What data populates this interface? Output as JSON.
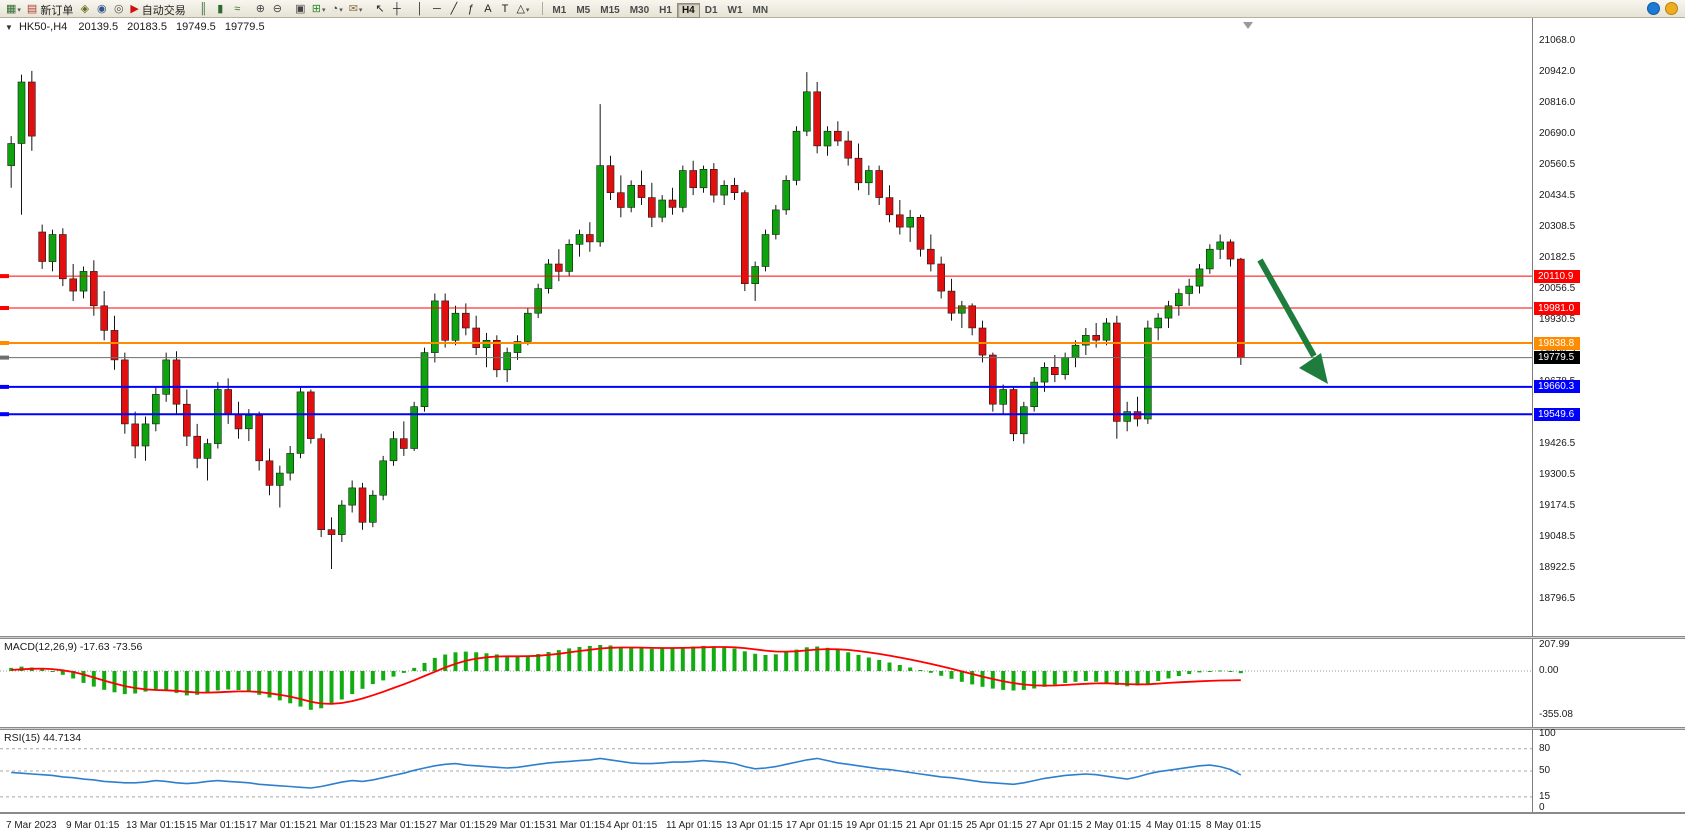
{
  "colors": {
    "candle_up": "#0EA30E",
    "candle_down": "#E01010",
    "wick": "#141414",
    "macd_histogram": "#12AC12",
    "macd_signal": "#FF0000",
    "rsi_line": "#2E7FD0",
    "arrow": "#1E7D3C",
    "level_red": "#FF0000",
    "level_blue": "#0000FF",
    "level_orange": "#FF8C00"
  },
  "toolbar": {
    "items": [
      {
        "name": "new-chart-icon",
        "glyph": "▦",
        "color": "#2d6a2d",
        "dropdown": true
      },
      {
        "name": "new-order-button",
        "glyph": "▤",
        "color": "#b03a2e",
        "label": "新订单"
      },
      {
        "name": "metaeditor-icon",
        "glyph": "◈",
        "color": "#6b6b1f"
      },
      {
        "name": "market-watch-icon",
        "glyph": "◉",
        "color": "#33548a"
      },
      {
        "name": "strategy-tester-icon",
        "glyph": "◎",
        "color": "#555555"
      },
      {
        "name": "autotrading-button",
        "glyph": "▶",
        "color": "#cc1111",
        "label": "自动交易"
      },
      {
        "sep": true
      },
      {
        "name": "bar-chart-icon",
        "glyph": "║",
        "color": "#2e6b2e"
      },
      {
        "name": "candlestick-chart-icon",
        "glyph": "▮",
        "color": "#2e6b2e"
      },
      {
        "name": "line-chart-icon",
        "glyph": "≈",
        "color": "#2e6b2e"
      },
      {
        "sep": true
      },
      {
        "name": "zoom-in-icon",
        "glyph": "⊕",
        "color": "#444444"
      },
      {
        "name": "zoom-out-icon",
        "glyph": "⊖",
        "color": "#444444"
      },
      {
        "sep": true
      },
      {
        "name": "tile-windows-icon",
        "glyph": "▣",
        "color": "#444444"
      },
      {
        "name": "indicators-icon",
        "glyph": "⊞",
        "color": "#2e8b2e",
        "dropdown": true
      },
      {
        "name": "periods-icon",
        "glyph": "◔",
        "color": "#444444",
        "dropdown": true
      },
      {
        "name": "templates-icon",
        "glyph": "✉",
        "color": "#8a6d3b",
        "dropdown": true
      },
      {
        "sep": true
      },
      {
        "name": "cursor-icon",
        "glyph": "↖",
        "color": "#222222"
      },
      {
        "name": "crosshair-icon",
        "glyph": "┼",
        "color": "#222222"
      },
      {
        "sep": true
      },
      {
        "name": "vertical-line-icon",
        "glyph": "│",
        "color": "#222222"
      },
      {
        "name": "horizontal-line-icon",
        "glyph": "─",
        "color": "#222222"
      },
      {
        "name": "trendline-icon",
        "glyph": "╱",
        "color": "#222222"
      },
      {
        "name": "fibonacci-icon",
        "glyph": "ƒ",
        "color": "#222222"
      },
      {
        "name": "text-icon",
        "glyph": "A",
        "color": "#222222"
      },
      {
        "name": "label-icon",
        "glyph": "T",
        "color": "#222222"
      },
      {
        "name": "shapes-icon",
        "glyph": "△",
        "color": "#222222",
        "dropdown": true
      },
      {
        "sep": true
      }
    ],
    "timeframes": [
      "M1",
      "M5",
      "M15",
      "M30",
      "H1",
      "H4",
      "D1",
      "W1",
      "MN"
    ],
    "active_timeframe": "H4",
    "right_icons": [
      {
        "name": "community-icon",
        "color": "#1c7ad4"
      },
      {
        "name": "search-icon",
        "color": "#f0ad1e"
      }
    ]
  },
  "chart": {
    "collapse_glyph": "▼",
    "symbol_line": "HK50-,H4",
    "ohlc": {
      "open": "20139.5",
      "high": "20183.5",
      "low": "19749.5",
      "close": "19779.5"
    },
    "price_axis_labels": [
      "21068.0",
      "20942.0",
      "20816.0",
      "20690.0",
      "20560.5",
      "20434.5",
      "20308.5",
      "20182.5",
      "20056.5",
      "19930.5",
      "19804.5",
      "19678.5",
      "19552.5",
      "19426.5",
      "19300.5",
      "19174.5",
      "19048.5",
      "18922.5",
      "18796.5"
    ],
    "hlines": [
      {
        "price": 20110.9,
        "label": "20110.9",
        "color": "#FF0000",
        "width": 1
      },
      {
        "price": 19981.0,
        "label": "19981.0",
        "color": "#FF0000",
        "width": 1
      },
      {
        "price": 19838.8,
        "label": "19838.8",
        "color": "#FF8C00",
        "width": 2
      },
      {
        "price": 19779.5,
        "label": "19779.5",
        "color": "#6E6E6E",
        "width": 1,
        "tag_color": "#000000"
      },
      {
        "price": 19660.3,
        "label": "19660.3",
        "color": "#0000FF",
        "width": 2
      },
      {
        "price": 19549.6,
        "label": "19549.6",
        "color": "#0000FF",
        "width": 2
      }
    ],
    "annotation_arrow": {
      "color": "#1E7D3C"
    },
    "time_labels": [
      "7 Mar 2023",
      "9 Mar 01:15",
      "13 Mar 01:15",
      "15 Mar 01:15",
      "17 Mar 01:15",
      "21 Mar 01:15",
      "23 Mar 01:15",
      "27 Mar 01:15",
      "29 Mar 01:15",
      "31 Mar 01:15",
      "4 Apr 01:15",
      "11 Apr 01:15",
      "13 Apr 01:15",
      "17 Apr 01:15",
      "19 Apr 01:15",
      "21 Apr 01:15",
      "25 Apr 01:15",
      "27 Apr 01:15",
      "2 May 01:15",
      "4 May 01:15",
      "8 May 01:15"
    ]
  },
  "macd": {
    "label": "MACD(12,26,9)",
    "values_text": "-17.63 -73.56",
    "axis_labels": [
      "207.99",
      "0.00",
      "-355.08"
    ]
  },
  "rsi": {
    "label": "RSI(15)",
    "value_text": "44.7134",
    "axis_labels": [
      "100",
      "80",
      "50",
      "15",
      "0"
    ],
    "levels": [
      80,
      50,
      15
    ]
  },
  "chart_data": {
    "type": "candlestick",
    "symbol": "HK50-",
    "period": "H4",
    "price_range": [
      18796.5,
      21068.0
    ],
    "candles": [
      [
        20560,
        20680,
        20470,
        20650
      ],
      [
        20650,
        20930,
        20360,
        20900
      ],
      [
        20900,
        20945,
        20620,
        20680
      ],
      [
        20290,
        20320,
        20140,
        20170
      ],
      [
        20170,
        20300,
        20130,
        20280
      ],
      [
        20280,
        20305,
        20070,
        20100
      ],
      [
        20100,
        20160,
        20010,
        20050
      ],
      [
        20050,
        20150,
        20020,
        20130
      ],
      [
        20130,
        20175,
        19950,
        19990
      ],
      [
        19990,
        20050,
        19850,
        19890
      ],
      [
        19890,
        19950,
        19730,
        19770
      ],
      [
        19770,
        19800,
        19470,
        19510
      ],
      [
        19510,
        19560,
        19370,
        19420
      ],
      [
        19420,
        19540,
        19360,
        19510
      ],
      [
        19510,
        19660,
        19480,
        19630
      ],
      [
        19630,
        19800,
        19600,
        19770
      ],
      [
        19770,
        19805,
        19550,
        19590
      ],
      [
        19590,
        19650,
        19420,
        19460
      ],
      [
        19460,
        19510,
        19330,
        19370
      ],
      [
        19370,
        19450,
        19280,
        19430
      ],
      [
        19430,
        19680,
        19410,
        19650
      ],
      [
        19650,
        19695,
        19510,
        19550
      ],
      [
        19550,
        19600,
        19450,
        19490
      ],
      [
        19490,
        19570,
        19440,
        19545
      ],
      [
        19545,
        19560,
        19320,
        19360
      ],
      [
        19360,
        19410,
        19220,
        19260
      ],
      [
        19260,
        19340,
        19170,
        19310
      ],
      [
        19310,
        19420,
        19280,
        19390
      ],
      [
        19390,
        19660,
        19370,
        19640
      ],
      [
        19640,
        19650,
        19430,
        19450
      ],
      [
        19450,
        19470,
        19050,
        19080
      ],
      [
        19080,
        19130,
        18920,
        19060
      ],
      [
        19060,
        19200,
        19030,
        19180
      ],
      [
        19180,
        19280,
        19150,
        19250
      ],
      [
        19250,
        19270,
        19080,
        19110
      ],
      [
        19110,
        19240,
        19090,
        19220
      ],
      [
        19220,
        19380,
        19200,
        19360
      ],
      [
        19360,
        19480,
        19340,
        19450
      ],
      [
        19450,
        19520,
        19380,
        19410
      ],
      [
        19410,
        19600,
        19400,
        19580
      ],
      [
        19580,
        19820,
        19560,
        19800
      ],
      [
        19800,
        20040,
        19760,
        20010
      ],
      [
        20010,
        20040,
        19820,
        19850
      ],
      [
        19850,
        19990,
        19830,
        19960
      ],
      [
        19960,
        20000,
        19870,
        19900
      ],
      [
        19900,
        19950,
        19790,
        19820
      ],
      [
        19820,
        19880,
        19740,
        19850
      ],
      [
        19850,
        19870,
        19700,
        19730
      ],
      [
        19730,
        19820,
        19680,
        19800
      ],
      [
        19800,
        19870,
        19770,
        19845
      ],
      [
        19845,
        19980,
        19830,
        19960
      ],
      [
        19960,
        20080,
        19940,
        20060
      ],
      [
        20060,
        20180,
        20040,
        20160
      ],
      [
        20160,
        20220,
        20090,
        20130
      ],
      [
        20130,
        20260,
        20110,
        20240
      ],
      [
        20240,
        20300,
        20190,
        20280
      ],
      [
        20280,
        20330,
        20210,
        20250
      ],
      [
        20250,
        20810,
        20230,
        20560
      ],
      [
        20560,
        20600,
        20420,
        20450
      ],
      [
        20450,
        20520,
        20350,
        20390
      ],
      [
        20390,
        20500,
        20370,
        20480
      ],
      [
        20480,
        20540,
        20400,
        20430
      ],
      [
        20430,
        20490,
        20310,
        20350
      ],
      [
        20350,
        20440,
        20330,
        20420
      ],
      [
        20420,
        20470,
        20360,
        20390
      ],
      [
        20390,
        20560,
        20370,
        20540
      ],
      [
        20540,
        20580,
        20440,
        20470
      ],
      [
        20470,
        20560,
        20450,
        20545
      ],
      [
        20545,
        20570,
        20410,
        20440
      ],
      [
        20440,
        20500,
        20400,
        20480
      ],
      [
        20480,
        20510,
        20420,
        20450
      ],
      [
        20450,
        20460,
        20050,
        20080
      ],
      [
        20080,
        20170,
        20010,
        20150
      ],
      [
        20150,
        20300,
        20130,
        20280
      ],
      [
        20280,
        20400,
        20260,
        20380
      ],
      [
        20380,
        20520,
        20360,
        20500
      ],
      [
        20500,
        20720,
        20480,
        20700
      ],
      [
        20700,
        20940,
        20680,
        20860
      ],
      [
        20860,
        20900,
        20610,
        20640
      ],
      [
        20640,
        20720,
        20600,
        20700
      ],
      [
        20700,
        20740,
        20640,
        20660
      ],
      [
        20660,
        20700,
        20560,
        20590
      ],
      [
        20590,
        20650,
        20460,
        20490
      ],
      [
        20490,
        20560,
        20440,
        20540
      ],
      [
        20540,
        20560,
        20400,
        20430
      ],
      [
        20430,
        20480,
        20330,
        20360
      ],
      [
        20360,
        20420,
        20280,
        20310
      ],
      [
        20310,
        20380,
        20250,
        20350
      ],
      [
        20350,
        20360,
        20190,
        20220
      ],
      [
        20220,
        20280,
        20130,
        20160
      ],
      [
        20160,
        20190,
        20020,
        20050
      ],
      [
        20050,
        20100,
        19930,
        19960
      ],
      [
        19960,
        20010,
        19900,
        19990
      ],
      [
        19990,
        20000,
        19870,
        19900
      ],
      [
        19900,
        19930,
        19760,
        19790
      ],
      [
        19790,
        19800,
        19560,
        19590
      ],
      [
        19590,
        19670,
        19550,
        19650
      ],
      [
        19650,
        19660,
        19440,
        19470
      ],
      [
        19470,
        19600,
        19430,
        19580
      ],
      [
        19580,
        19700,
        19560,
        19680
      ],
      [
        19680,
        19760,
        19640,
        19740
      ],
      [
        19740,
        19790,
        19680,
        19710
      ],
      [
        19710,
        19800,
        19690,
        19780
      ],
      [
        19780,
        19850,
        19740,
        19830
      ],
      [
        19830,
        19900,
        19790,
        19870
      ],
      [
        19870,
        19920,
        19820,
        19850
      ],
      [
        19850,
        19940,
        19830,
        19920
      ],
      [
        19920,
        19950,
        19450,
        19520
      ],
      [
        19520,
        19600,
        19480,
        19560
      ],
      [
        19560,
        19620,
        19500,
        19530
      ],
      [
        19530,
        19930,
        19510,
        19900
      ],
      [
        19900,
        19960,
        19850,
        19940
      ],
      [
        19940,
        20010,
        19900,
        19990
      ],
      [
        19990,
        20060,
        19950,
        20040
      ],
      [
        20040,
        20100,
        19990,
        20070
      ],
      [
        20070,
        20160,
        20040,
        20140
      ],
      [
        20140,
        20240,
        20120,
        20220
      ],
      [
        20220,
        20280,
        20180,
        20250
      ],
      [
        20250,
        20260,
        20150,
        20180
      ],
      [
        20180,
        20185,
        19750,
        19779.5
      ]
    ],
    "macd_histogram": [
      25,
      35,
      28,
      15,
      -5,
      -30,
      -60,
      -95,
      -125,
      -150,
      -170,
      -185,
      -180,
      -165,
      -150,
      -158,
      -175,
      -195,
      -190,
      -168,
      -155,
      -148,
      -152,
      -168,
      -190,
      -212,
      -235,
      -258,
      -285,
      -310,
      -298,
      -268,
      -228,
      -185,
      -142,
      -105,
      -75,
      -45,
      -15,
      25,
      65,
      105,
      132,
      150,
      155,
      150,
      142,
      133,
      124,
      118,
      122,
      136,
      152,
      167,
      181,
      192,
      201,
      208,
      204,
      194,
      185,
      180,
      178,
      181,
      186,
      191,
      196,
      201,
      198,
      190,
      179,
      158,
      138,
      128,
      134,
      150,
      171,
      190,
      196,
      186,
      170,
      150,
      129,
      108,
      88,
      68,
      48,
      28,
      8,
      -14,
      -38,
      -62,
      -86,
      -107,
      -126,
      -141,
      -151,
      -156,
      -151,
      -140,
      -126,
      -110,
      -96,
      -86,
      -81,
      -86,
      -96,
      -112,
      -122,
      -116,
      -100,
      -80,
      -59,
      -40,
      -24,
      -11,
      -2,
      4,
      -6,
      -17.63
    ],
    "macd_signal": [
      8,
      14,
      18,
      19,
      15,
      6,
      -8,
      -28,
      -52,
      -77,
      -100,
      -121,
      -136,
      -147,
      -152,
      -154,
      -158,
      -166,
      -172,
      -173,
      -170,
      -166,
      -163,
      -163,
      -168,
      -178,
      -190,
      -205,
      -224,
      -246,
      -260,
      -263,
      -256,
      -241,
      -220,
      -194,
      -166,
      -136,
      -106,
      -74,
      -40,
      -6,
      28,
      58,
      82,
      99,
      110,
      116,
      118,
      118,
      119,
      122,
      129,
      138,
      149,
      160,
      170,
      180,
      186,
      188,
      188,
      187,
      185,
      184,
      184,
      185,
      187,
      190,
      192,
      192,
      190,
      183,
      173,
      163,
      156,
      155,
      158,
      165,
      172,
      175,
      174,
      169,
      160,
      149,
      137,
      123,
      108,
      92,
      75,
      57,
      38,
      18,
      -3,
      -24,
      -45,
      -64,
      -82,
      -97,
      -108,
      -115,
      -117,
      -116,
      -112,
      -107,
      -102,
      -99,
      -98,
      -101,
      -105,
      -107,
      -106,
      -101,
      -95,
      -90,
      -86,
      -82,
      -79,
      -76,
      -75,
      -73.56
    ],
    "rsi": [
      48,
      47,
      46,
      45,
      44,
      42,
      41,
      39,
      38,
      36,
      35,
      34,
      34,
      35,
      37,
      36,
      34,
      33,
      34,
      36,
      37,
      36,
      35,
      34,
      32,
      31,
      30,
      29,
      28,
      27,
      29,
      32,
      35,
      37,
      36,
      38,
      41,
      44,
      47,
      51,
      54,
      57,
      59,
      60,
      58,
      57,
      56,
      55,
      54,
      55,
      57,
      59,
      61,
      62,
      63,
      64,
      65,
      67,
      65,
      63,
      61,
      60,
      60,
      61,
      62,
      62,
      63,
      64,
      63,
      62,
      60,
      56,
      53,
      54,
      56,
      59,
      62,
      65,
      67,
      64,
      61,
      59,
      57,
      55,
      53,
      52,
      50,
      48,
      46,
      44,
      42,
      41,
      39,
      37,
      35,
      34,
      33,
      32,
      34,
      37,
      40,
      42,
      44,
      45,
      46,
      45,
      43,
      41,
      39,
      42,
      46,
      49,
      51,
      53,
      55,
      57,
      58,
      56,
      52,
      44.71
    ]
  }
}
